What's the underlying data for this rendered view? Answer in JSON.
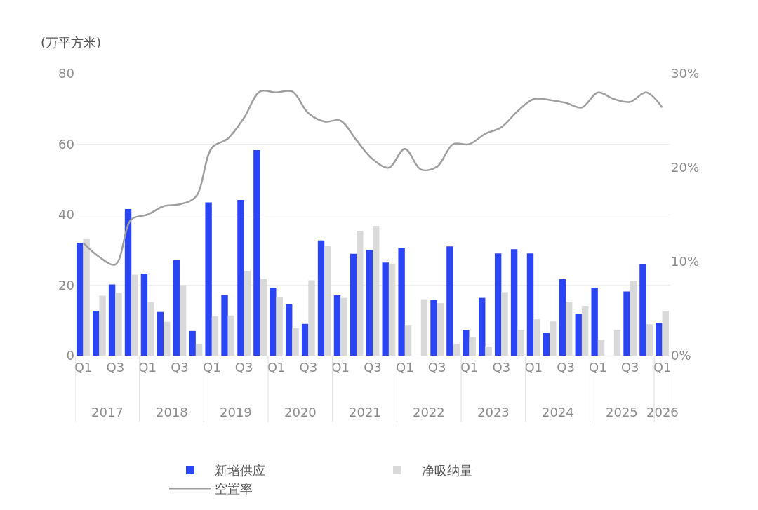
{
  "chart_data": {
    "type": "bar",
    "ylabel": "(万平方米)",
    "categories": [
      "Q1",
      null,
      "Q3",
      null,
      "Q1",
      null,
      "Q3",
      null,
      "Q1",
      null,
      "Q3",
      null,
      "Q1",
      null,
      "Q3",
      null,
      "Q1",
      null,
      "Q3",
      null,
      "Q1",
      null,
      "Q3",
      null,
      "Q1",
      null,
      "Q3",
      null,
      "Q1",
      null,
      "Q3",
      null,
      "Q1",
      null,
      "Q3",
      null,
      "Q1"
    ],
    "annotations": [
      "2017",
      "2018",
      "2019",
      "2020",
      "2021",
      "2022",
      "2023",
      "2024",
      "2025",
      "2026"
    ],
    "series": [
      {
        "name": "新增供应",
        "color": "#2b45f5",
        "values": [
          32,
          12.7,
          20.2,
          41.6,
          23.3,
          12.4,
          27.1,
          7,
          43.5,
          17.2,
          44.2,
          58.3,
          19.3,
          14.6,
          9,
          32.7,
          17.1,
          28.9,
          30,
          26.4,
          30.6,
          0,
          15.8,
          31,
          7.3,
          16.4,
          29,
          30.2,
          29,
          6.5,
          21.7,
          11.9,
          19.3,
          0,
          18.2,
          26,
          9.3
        ]
      },
      {
        "name": "净吸纳量",
        "color": "#d9d9d9",
        "values": [
          33.3,
          17,
          17.8,
          23,
          15.2,
          9.6,
          20,
          3.2,
          11.2,
          11.4,
          24,
          21.8,
          16.5,
          7.8,
          21.4,
          31.1,
          16.4,
          35.4,
          36.8,
          26.1,
          8.7,
          16,
          14.9,
          3.3,
          5.3,
          2.6,
          18,
          7.3,
          10.3,
          9.7,
          15.3,
          14.1,
          4.5,
          7.3,
          21.3,
          8.9,
          12.7
        ]
      },
      {
        "name": "空置率",
        "type": "line",
        "axis": "y2",
        "color": "#9e9e9e",
        "values": [
          12.0,
          10.5,
          9.7,
          14.5,
          15.0,
          15.9,
          16.1,
          16.9,
          22.1,
          23.1,
          25.3,
          28.1,
          28.0,
          28.1,
          25.8,
          24.9,
          25.0,
          22.9,
          20.9,
          20.0,
          22.0,
          19.8,
          20.1,
          22.5,
          22.5,
          23.6,
          24.3,
          26.0,
          27.3,
          27.2,
          26.9,
          26.4,
          28.0,
          27.3,
          27.0,
          28.0,
          26.4
        ]
      }
    ],
    "ylim": [
      0,
      80
    ],
    "yticks": [
      0,
      20,
      40,
      60,
      80
    ],
    "y2lim": [
      0,
      30
    ],
    "y2ticks": [
      {
        "value": 0,
        "label": "0%"
      },
      {
        "value": 10,
        "label": "10%"
      },
      {
        "value": 20,
        "label": "20%"
      },
      {
        "value": 30,
        "label": "30%"
      }
    ],
    "grid": "y",
    "legend": "bottom"
  }
}
